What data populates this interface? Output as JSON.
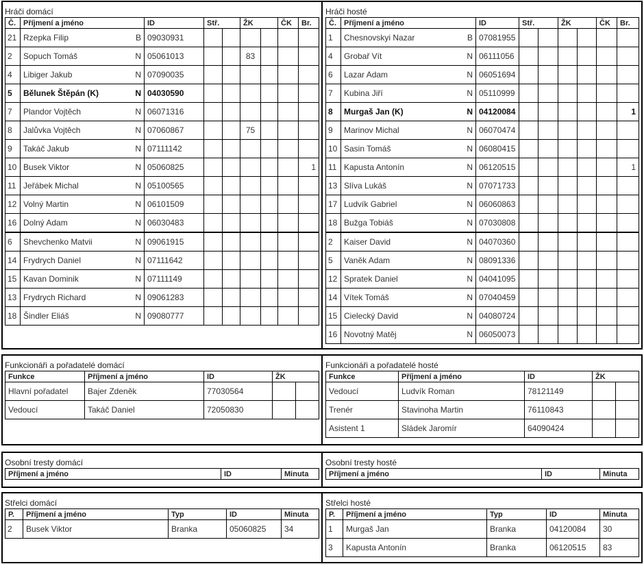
{
  "players_home": {
    "title": "Hráči domácí",
    "headers": {
      "no": "Č.",
      "name": "Příjmení a jméno",
      "id": "ID",
      "goals": "Stř.",
      "yellow": "ŽK",
      "red": "ČK",
      "gk": "Br."
    },
    "starters": [
      {
        "no": "21",
        "name": "Rzepka Filip",
        "pos": "B",
        "id": "09030931",
        "stats": [
          "",
          "",
          "",
          "",
          "",
          ""
        ]
      },
      {
        "no": "2",
        "name": "Sopuch Tomáš",
        "pos": "N",
        "id": "05061013",
        "stats": [
          "",
          "",
          "83",
          "",
          "",
          ""
        ]
      },
      {
        "no": "4",
        "name": "Libiger Jakub",
        "pos": "N",
        "id": "07090035",
        "stats": [
          "",
          "",
          "",
          "",
          "",
          ""
        ]
      },
      {
        "no": "5",
        "name": "Bělunek Štěpán (K)",
        "pos": "N",
        "id": "04030590",
        "stats": [
          "",
          "",
          "",
          "",
          "",
          ""
        ],
        "captain": true
      },
      {
        "no": "7",
        "name": "Plandor Vojtěch",
        "pos": "N",
        "id": "06071316",
        "stats": [
          "",
          "",
          "",
          "",
          "",
          ""
        ]
      },
      {
        "no": "8",
        "name": "Jalůvka Vojtěch",
        "pos": "N",
        "id": "07060867",
        "stats": [
          "",
          "",
          "75",
          "",
          "",
          ""
        ]
      },
      {
        "no": "9",
        "name": "Takáč Jakub",
        "pos": "N",
        "id": "07111142",
        "stats": [
          "",
          "",
          "",
          "",
          "",
          ""
        ]
      },
      {
        "no": "10",
        "name": "Busek Viktor",
        "pos": "N",
        "id": "05060825",
        "stats": [
          "",
          "",
          "",
          "",
          "",
          "1"
        ]
      },
      {
        "no": "11",
        "name": "Jeřábek Michal",
        "pos": "N",
        "id": "05100565",
        "stats": [
          "",
          "",
          "",
          "",
          "",
          ""
        ]
      },
      {
        "no": "12",
        "name": "Volný Martin",
        "pos": "N",
        "id": "06101509",
        "stats": [
          "",
          "",
          "",
          "",
          "",
          ""
        ]
      },
      {
        "no": "16",
        "name": "Dolný Adam",
        "pos": "N",
        "id": "06030483",
        "stats": [
          "",
          "",
          "",
          "",
          "",
          ""
        ]
      }
    ],
    "substitutes": [
      {
        "no": "6",
        "name": "Shevchenko Matvii",
        "pos": "N",
        "id": "09061915",
        "stats": [
          "",
          "",
          "",
          "",
          "",
          ""
        ]
      },
      {
        "no": "14",
        "name": "Frydrych Daniel",
        "pos": "N",
        "id": "07111642",
        "stats": [
          "",
          "",
          "",
          "",
          "",
          ""
        ]
      },
      {
        "no": "15",
        "name": "Kavan Dominik",
        "pos": "N",
        "id": "07111149",
        "stats": [
          "",
          "",
          "",
          "",
          "",
          ""
        ]
      },
      {
        "no": "13",
        "name": "Frydrych Richard",
        "pos": "N",
        "id": "09061283",
        "stats": [
          "",
          "",
          "",
          "",
          "",
          ""
        ]
      },
      {
        "no": "18",
        "name": "Šindler Eliáš",
        "pos": "N",
        "id": "09080777",
        "stats": [
          "",
          "",
          "",
          "",
          "",
          ""
        ]
      }
    ]
  },
  "players_away": {
    "title": "Hráči hosté",
    "headers": {
      "no": "Č.",
      "name": "Příjmení a jméno",
      "id": "ID",
      "goals": "Stř.",
      "yellow": "ŽK",
      "red": "ČK",
      "gk": "Br."
    },
    "starters": [
      {
        "no": "1",
        "name": "Chesnovskyi Nazar",
        "pos": "B",
        "id": "07081955",
        "stats": [
          "",
          "",
          "",
          "",
          "",
          ""
        ]
      },
      {
        "no": "4",
        "name": "Grobař Vít",
        "pos": "N",
        "id": "06111056",
        "stats": [
          "",
          "",
          "",
          "",
          "",
          ""
        ]
      },
      {
        "no": "6",
        "name": "Lazar Adam",
        "pos": "N",
        "id": "06051694",
        "stats": [
          "",
          "",
          "",
          "",
          "",
          ""
        ]
      },
      {
        "no": "7",
        "name": "Kubina Jiří",
        "pos": "N",
        "id": "05110999",
        "stats": [
          "",
          "",
          "",
          "",
          "",
          ""
        ]
      },
      {
        "no": "8",
        "name": "Murgaš Jan (K)",
        "pos": "N",
        "id": "04120084",
        "stats": [
          "",
          "",
          "",
          "",
          "",
          "1"
        ],
        "captain": true
      },
      {
        "no": "9",
        "name": "Marinov Michal",
        "pos": "N",
        "id": "06070474",
        "stats": [
          "",
          "",
          "",
          "",
          "",
          ""
        ]
      },
      {
        "no": "10",
        "name": "Sasin Tomáš",
        "pos": "N",
        "id": "06080415",
        "stats": [
          "",
          "",
          "",
          "",
          "",
          ""
        ]
      },
      {
        "no": "11",
        "name": "Kapusta Antonín",
        "pos": "N",
        "id": "06120515",
        "stats": [
          "",
          "",
          "",
          "",
          "",
          "1"
        ]
      },
      {
        "no": "13",
        "name": "Slíva Lukáš",
        "pos": "N",
        "id": "07071733",
        "stats": [
          "",
          "",
          "",
          "",
          "",
          ""
        ]
      },
      {
        "no": "17",
        "name": "Ludvík Gabriel",
        "pos": "N",
        "id": "06060863",
        "stats": [
          "",
          "",
          "",
          "",
          "",
          ""
        ]
      },
      {
        "no": "18",
        "name": "Bužga Tobiáš",
        "pos": "N",
        "id": "07030808",
        "stats": [
          "",
          "",
          "",
          "",
          "",
          ""
        ]
      }
    ],
    "substitutes": [
      {
        "no": "2",
        "name": "Kaiser David",
        "pos": "N",
        "id": "04070360",
        "stats": [
          "",
          "",
          "",
          "",
          "",
          ""
        ]
      },
      {
        "no": "5",
        "name": "Vaněk Adam",
        "pos": "N",
        "id": "08091336",
        "stats": [
          "",
          "",
          "",
          "",
          "",
          ""
        ]
      },
      {
        "no": "12",
        "name": "Spratek Daniel",
        "pos": "N",
        "id": "04041095",
        "stats": [
          "",
          "",
          "",
          "",
          "",
          ""
        ]
      },
      {
        "no": "14",
        "name": "Vítek Tomáš",
        "pos": "N",
        "id": "07040459",
        "stats": [
          "",
          "",
          "",
          "",
          "",
          ""
        ]
      },
      {
        "no": "15",
        "name": "Cielecký David",
        "pos": "N",
        "id": "04080724",
        "stats": [
          "",
          "",
          "",
          "",
          "",
          ""
        ]
      },
      {
        "no": "16",
        "name": "Novotný Matěj",
        "pos": "N",
        "id": "06050073",
        "stats": [
          "",
          "",
          "",
          "",
          "",
          ""
        ]
      }
    ]
  },
  "officials_home": {
    "title": "Funkcionáři a pořadatelé domácí",
    "headers": {
      "role": "Funkce",
      "name": "Příjmení a jméno",
      "id": "ID",
      "yellow": "ŽK"
    },
    "rows": [
      {
        "role": "Hlavní pořadatel",
        "name": "Bajer Zdeněk",
        "id": "77030564"
      },
      {
        "role": "Vedoucí",
        "name": "Takáč Daniel",
        "id": "72050830"
      }
    ]
  },
  "officials_away": {
    "title": "Funkcionáři a pořadatelé hosté",
    "headers": {
      "role": "Funkce",
      "name": "Příjmení a jméno",
      "id": "ID",
      "yellow": "ŽK"
    },
    "rows": [
      {
        "role": "Vedoucí",
        "name": "Ludvík Roman",
        "id": "78121149"
      },
      {
        "role": "Trenér",
        "name": "Stavinoha Martin",
        "id": "76110843"
      },
      {
        "role": "Asistent 1",
        "name": "Sládek Jaromír",
        "id": "64090424"
      }
    ]
  },
  "penalties_home": {
    "title": "Osobní tresty domácí",
    "headers": {
      "name": "Příjmení a jméno",
      "id": "ID",
      "minute": "Minuta"
    }
  },
  "penalties_away": {
    "title": "Osobní tresty hosté",
    "headers": {
      "name": "Příjmení a jméno",
      "id": "ID",
      "minute": "Minuta"
    }
  },
  "scorers_home": {
    "title": "Střelci domácí",
    "headers": {
      "order": "P.",
      "name": "Příjmení a jméno",
      "type": "Typ",
      "id": "ID",
      "minute": "Minuta"
    },
    "rows": [
      {
        "order": "2",
        "name": "Busek Viktor",
        "type": "Branka",
        "id": "05060825",
        "minute": "34"
      }
    ]
  },
  "scorers_away": {
    "title": "Střelci hosté",
    "headers": {
      "order": "P.",
      "name": "Příjmení a jméno",
      "type": "Typ",
      "id": "ID",
      "minute": "Minuta"
    },
    "rows": [
      {
        "order": "1",
        "name": "Murgaš Jan",
        "type": "Branka",
        "id": "04120084",
        "minute": "30"
      },
      {
        "order": "3",
        "name": "Kapusta Antonín",
        "type": "Branka",
        "id": "06120515",
        "minute": "83"
      }
    ]
  }
}
